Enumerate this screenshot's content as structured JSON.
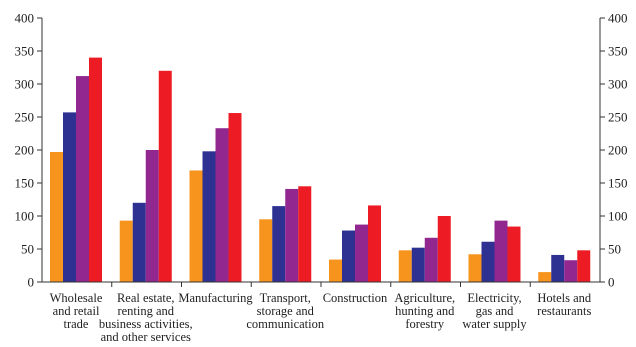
{
  "chart_data": {
    "type": "bar",
    "categories": [
      [
        "Wholesale",
        "and retail",
        "trade"
      ],
      [
        "Real estate,",
        "renting and",
        "business activities,",
        "and other services"
      ],
      [
        "Manufacturing"
      ],
      [
        "Transport,",
        "storage and",
        "communication"
      ],
      [
        "Construction"
      ],
      [
        "Agriculture,",
        "hunting and",
        "forestry"
      ],
      [
        "Electricity,",
        "gas and",
        "water supply"
      ],
      [
        "Hotels and",
        "restaurants"
      ]
    ],
    "series": [
      {
        "color": "#f7941d",
        "values": [
          197,
          93,
          169,
          95,
          34,
          48,
          42,
          15
        ]
      },
      {
        "color": "#2e3192",
        "values": [
          257,
          120,
          198,
          115,
          78,
          52,
          61,
          41
        ]
      },
      {
        "color": "#92278f",
        "values": [
          312,
          200,
          233,
          141,
          87,
          67,
          93,
          33
        ]
      },
      {
        "color": "#ed1c24",
        "values": [
          340,
          320,
          256,
          145,
          116,
          100,
          84,
          48
        ]
      }
    ],
    "ylim": [
      0,
      400
    ],
    "yticks": [
      "0",
      "50",
      "100",
      "150",
      "200",
      "250",
      "300",
      "350",
      "400"
    ],
    "right_axis": true,
    "grid": false,
    "legend": "none"
  }
}
